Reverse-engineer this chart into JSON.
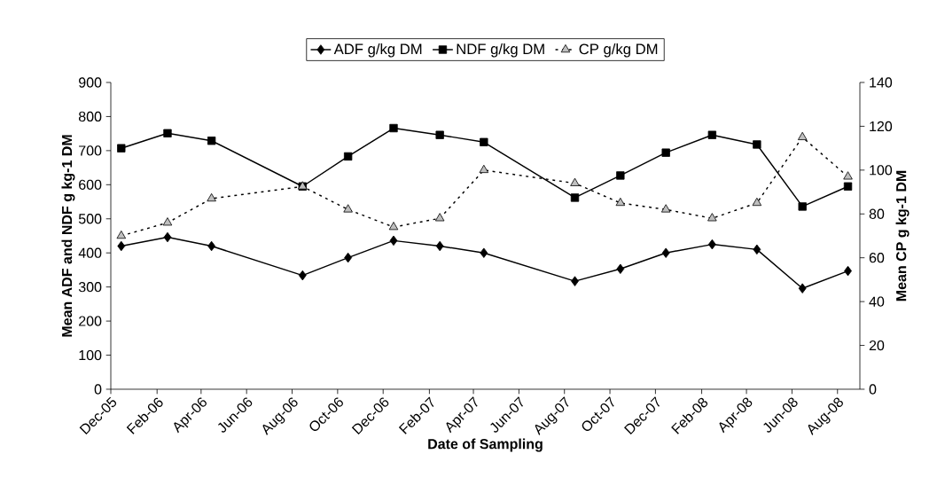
{
  "chart_data": {
    "type": "line",
    "xlabel": "Date of Sampling",
    "ylabel": "Mean ADF and NDF g kg-1 DM",
    "y2label": "Mean CP g kg-1 DM",
    "x": [
      "2005-12-15",
      "2006-02-15",
      "2006-04-15",
      "2006-08-15",
      "2006-10-15",
      "2006-12-15",
      "2007-02-15",
      "2007-04-15",
      "2007-08-15",
      "2007-10-15",
      "2007-12-15",
      "2008-02-15",
      "2008-04-15",
      "2008-06-15",
      "2008-08-15"
    ],
    "series": [
      {
        "name": "ADF g/kg DM",
        "color": "#000000",
        "marker": "diamond",
        "line_style": "solid",
        "values": [
          420,
          446,
          420,
          334,
          386,
          436,
          420,
          400,
          317,
          353,
          400,
          425,
          410,
          296,
          347
        ]
      },
      {
        "name": "NDF g/kg DM",
        "color": "#000000",
        "marker": "square",
        "line_style": "solid",
        "values": [
          707,
          751,
          729,
          595,
          683,
          766,
          746,
          725,
          562,
          627,
          694,
          746,
          718,
          536,
          595
        ]
      },
      {
        "name": "CP g/kg DM",
        "color": "#000000",
        "marker": "triangle",
        "line_style": "dotted",
        "axis": "y2",
        "values": [
          70,
          76,
          87,
          92.5,
          82,
          74,
          78,
          100,
          94,
          85,
          82,
          78,
          85,
          115,
          97
        ]
      }
    ],
    "xlim": [
      "2005-12-01",
      "2008-08-31"
    ],
    "xticks": [
      {
        "value": "2005-12",
        "label": "Dec-05"
      },
      {
        "value": "2006-02",
        "label": "Feb-06"
      },
      {
        "value": "2006-04",
        "label": "Apr-06"
      },
      {
        "value": "2006-06",
        "label": "Jun-06"
      },
      {
        "value": "2006-08",
        "label": "Aug-06"
      },
      {
        "value": "2006-10",
        "label": "Oct-06"
      },
      {
        "value": "2006-12",
        "label": "Dec-06"
      },
      {
        "value": "2007-02",
        "label": "Feb-07"
      },
      {
        "value": "2007-04",
        "label": "Apr-07"
      },
      {
        "value": "2007-06",
        "label": "Jun-07"
      },
      {
        "value": "2007-08",
        "label": "Aug-07"
      },
      {
        "value": "2007-10",
        "label": "Oct-07"
      },
      {
        "value": "2007-12",
        "label": "Dec-07"
      },
      {
        "value": "2008-02",
        "label": "Feb-08"
      },
      {
        "value": "2008-04",
        "label": "Apr-08"
      },
      {
        "value": "2008-06",
        "label": "Jun-08"
      },
      {
        "value": "2008-08",
        "label": "Aug-08"
      }
    ],
    "ylim": [
      0,
      900
    ],
    "yticks": [
      0,
      100,
      200,
      300,
      400,
      500,
      600,
      700,
      800,
      900
    ],
    "y2lim": [
      0,
      140
    ],
    "y2ticks": [
      0,
      20,
      40,
      60,
      80,
      100,
      120,
      140
    ],
    "grid": false,
    "legend": "top"
  }
}
